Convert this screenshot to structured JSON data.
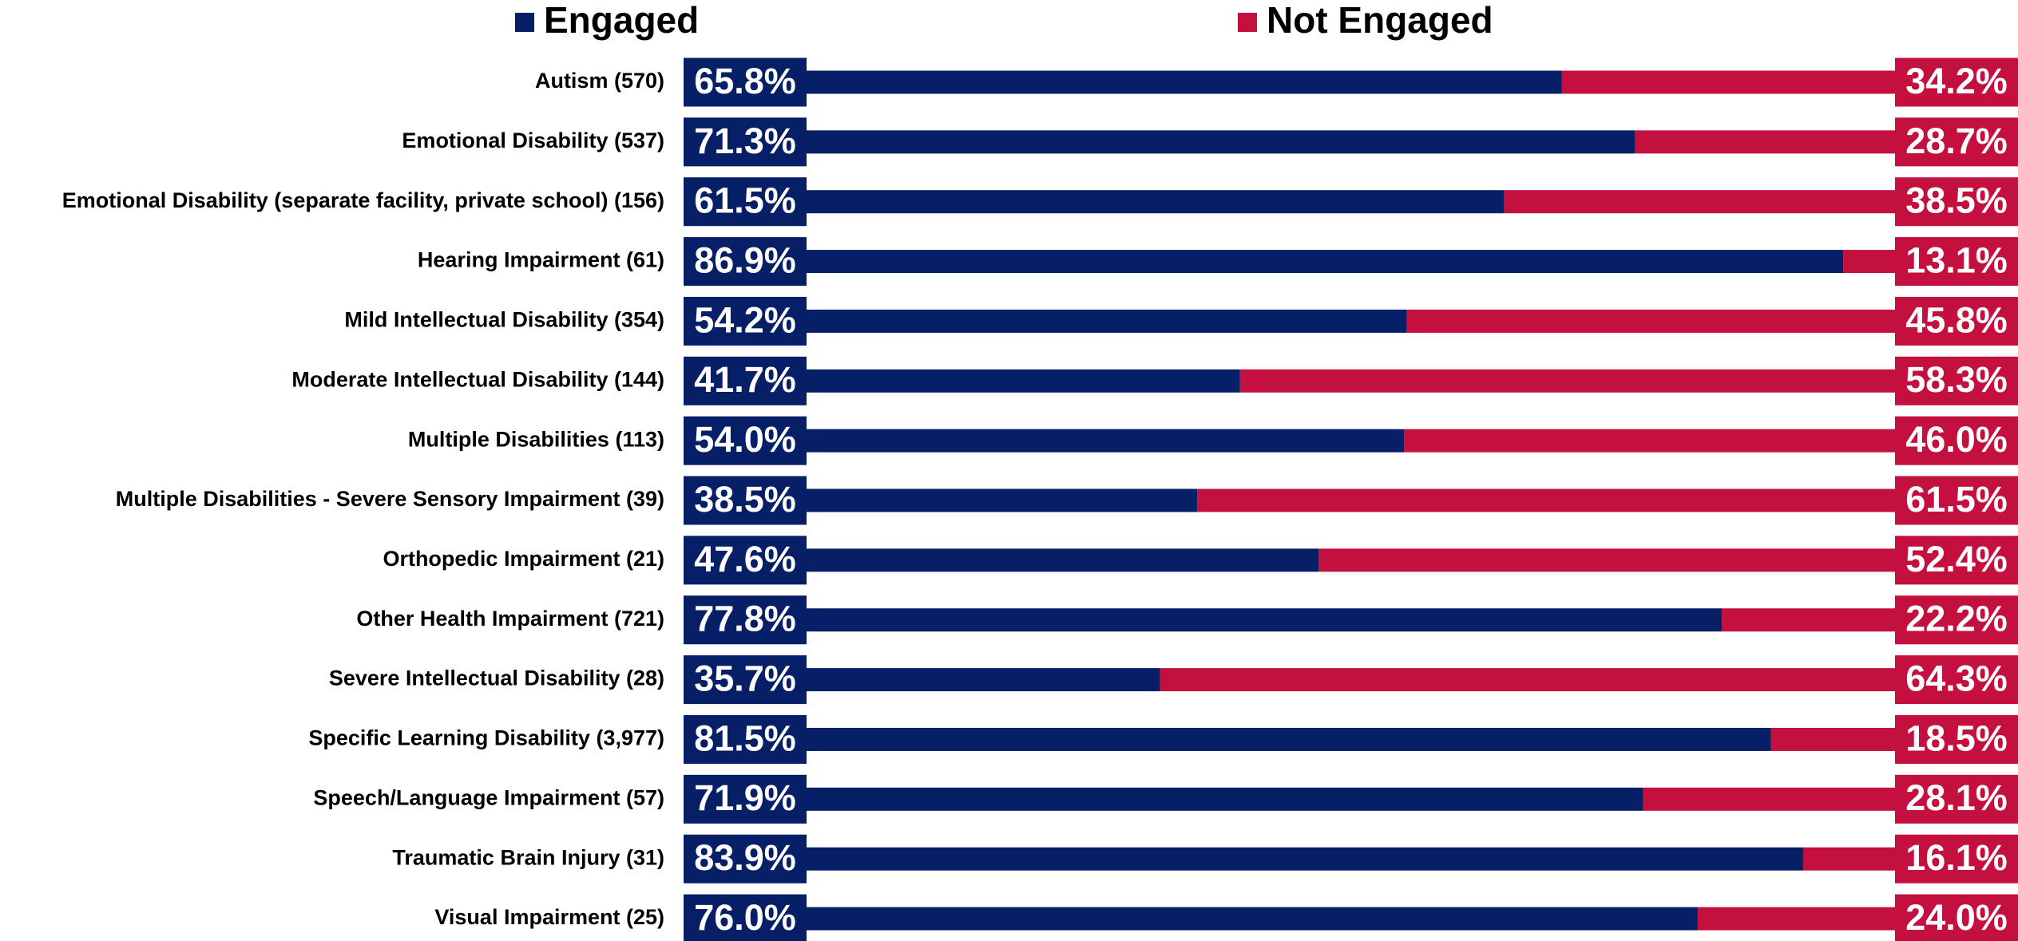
{
  "chart_data": {
    "type": "stacked_bar_horizontal",
    "categories": [
      "Autism (570)",
      "Emotional Disability (537)",
      "Emotional Disability (separate facility, private school) (156)",
      "Hearing Impairment (61)",
      "Mild Intellectual Disability (354)",
      "Moderate Intellectual Disability (144)",
      "Multiple Disabilities (113)",
      "Multiple Disabilities - Severe Sensory Impairment (39)",
      "Orthopedic Impairment (21)",
      "Other Health Impairment (721)",
      "Severe Intellectual Disability (28)",
      "Specific Learning Disability (3,977)",
      "Speech/Language Impairment (57)",
      "Traumatic Brain Injury (31)",
      "Visual Impairment (25)"
    ],
    "series": [
      {
        "name": "Engaged",
        "color": "#061f66",
        "values": [
          65.8,
          71.3,
          61.5,
          86.9,
          54.2,
          41.7,
          54.0,
          38.5,
          47.6,
          77.8,
          35.7,
          81.5,
          71.9,
          83.9,
          76.0
        ],
        "value_labels": [
          "65.8%",
          "71.3%",
          "61.5%",
          "86.9%",
          "54.2%",
          "41.7%",
          "54.0%",
          "38.5%",
          "47.6%",
          "77.8%",
          "35.7%",
          "81.5%",
          "71.9%",
          "83.9%",
          "76.0%"
        ]
      },
      {
        "name": "Not Engaged",
        "color": "#c4103f",
        "values": [
          34.2,
          28.7,
          38.5,
          13.1,
          45.8,
          58.3,
          46.0,
          61.5,
          52.4,
          22.2,
          64.3,
          18.5,
          28.1,
          16.1,
          24.0
        ],
        "value_labels": [
          "34.2%",
          "28.7%",
          "38.5%",
          "13.1%",
          "45.8%",
          "58.3%",
          "46.0%",
          "61.5%",
          "52.4%",
          "22.2%",
          "64.3%",
          "18.5%",
          "28.1%",
          "16.1%",
          "24.0%"
        ]
      }
    ],
    "xlim": [
      0,
      100
    ]
  }
}
